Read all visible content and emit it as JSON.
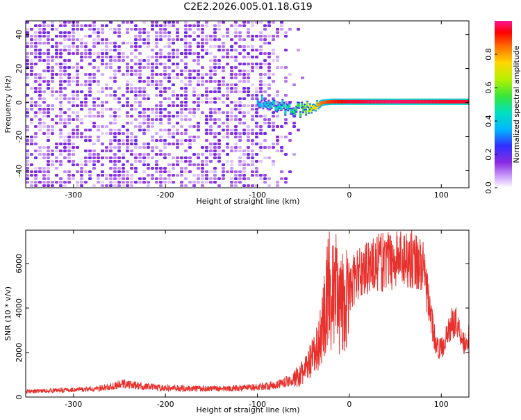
{
  "title": "C2E2.2026.005.01.18.G19",
  "chart_data": [
    {
      "type": "heatmap",
      "xlabel": "Height of straight line (km)",
      "ylabel": "Frequency (Hz)",
      "xlim": [
        -352,
        130
      ],
      "ylim": [
        -50,
        48
      ],
      "xticks": [
        -300,
        -200,
        -100,
        0,
        100
      ],
      "yticks": [
        -40,
        -20,
        0,
        20,
        40
      ],
      "colorbar": {
        "label": "Normalized spectral amplitude",
        "range": [
          0,
          1
        ],
        "ticks": [
          0.0,
          0.2,
          0.4,
          0.6,
          0.8
        ]
      },
      "dominant_line": {
        "frequency_hz": [
          [
            -100,
            1
          ],
          [
            -90,
            -1
          ],
          [
            -80,
            -2
          ],
          [
            -70,
            -3
          ],
          [
            -60,
            -4
          ],
          [
            -50,
            -4
          ],
          [
            -40,
            -2
          ],
          [
            -30,
            0
          ],
          [
            -20,
            0.5
          ],
          [
            0,
            0.5
          ],
          [
            50,
            0.5
          ],
          [
            100,
            0.5
          ],
          [
            130,
            0.5
          ]
        ],
        "amplitude": [
          [
            -100,
            0.35
          ],
          [
            -90,
            0.4
          ],
          [
            -80,
            0.45
          ],
          [
            -70,
            0.45
          ],
          [
            -60,
            0.5
          ],
          [
            -50,
            0.55
          ],
          [
            -40,
            0.7
          ],
          [
            -30,
            0.85
          ],
          [
            -20,
            0.9
          ],
          [
            0,
            0.95
          ],
          [
            50,
            0.98
          ],
          [
            100,
            0.95
          ],
          [
            130,
            0.95
          ]
        ]
      },
      "noise_region_x": [
        -352,
        -100
      ],
      "noise_fade_x": [
        -100,
        -50
      ],
      "noise_amplitude": 0.1
    },
    {
      "type": "line",
      "xlabel": "Height of straight line (km)",
      "ylabel": "SNR (10 * v/v)",
      "xlim": [
        -352,
        130
      ],
      "ylim": [
        0,
        7500
      ],
      "xticks": [
        -300,
        -200,
        -100,
        0,
        100
      ],
      "yticks": [
        0,
        2000,
        4000,
        6000
      ],
      "series": [
        {
          "color": "#e8302c",
          "values": [
            [
              -352,
              250
            ],
            [
              -320,
              300
            ],
            [
              -280,
              350
            ],
            [
              -260,
              450
            ],
            [
              -245,
              600
            ],
            [
              -230,
              500
            ],
            [
              -200,
              400
            ],
            [
              -150,
              380
            ],
            [
              -120,
              400
            ],
            [
              -100,
              450
            ],
            [
              -80,
              550
            ],
            [
              -60,
              800
            ],
            [
              -50,
              1100
            ],
            [
              -40,
              1700
            ],
            [
              -35,
              2100
            ],
            [
              -30,
              3000
            ],
            [
              -25,
              4200
            ],
            [
              -22,
              5000
            ],
            [
              -20,
              4000
            ],
            [
              -18,
              4500
            ],
            [
              -16,
              5200
            ],
            [
              -14,
              4800
            ],
            [
              -12,
              4600
            ],
            [
              -10,
              4000
            ],
            [
              -5,
              4300
            ],
            [
              0,
              4700
            ],
            [
              5,
              5300
            ],
            [
              10,
              5500
            ],
            [
              20,
              5900
            ],
            [
              30,
              6000
            ],
            [
              40,
              6100
            ],
            [
              50,
              6200
            ],
            [
              60,
              6300
            ],
            [
              70,
              6200
            ],
            [
              75,
              6100
            ],
            [
              80,
              5800
            ],
            [
              85,
              4600
            ],
            [
              88,
              3800
            ],
            [
              92,
              2800
            ],
            [
              95,
              2200
            ],
            [
              100,
              2200
            ],
            [
              105,
              2600
            ],
            [
              110,
              3200
            ],
            [
              115,
              3500
            ],
            [
              120,
              3000
            ],
            [
              125,
              2400
            ],
            [
              130,
              2700
            ]
          ]
        }
      ]
    }
  ]
}
